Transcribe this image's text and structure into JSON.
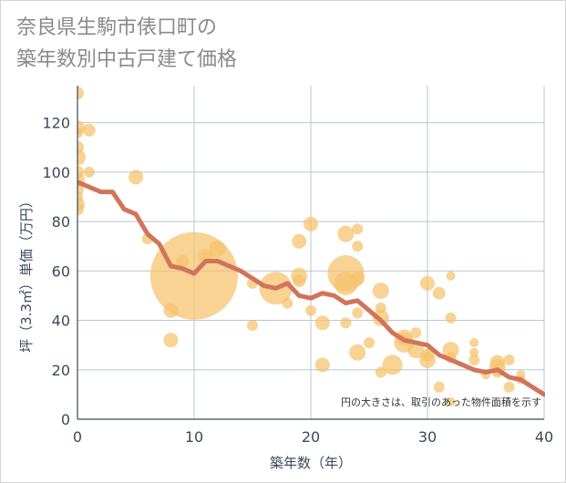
{
  "chart_data": {
    "type": "scatter",
    "title_line1": "奈良県生駒市俵口町の",
    "title_line2": "築年数別中古戸建て価格",
    "xlabel": "築年数（年）",
    "ylabel": "坪（3.3㎡）単価（万円）",
    "note": "円の大きさは、取引のあった物件面積を示す",
    "xlim": [
      0,
      40
    ],
    "ylim": [
      0,
      135
    ],
    "xticks": [
      0,
      10,
      20,
      30,
      40
    ],
    "yticks": [
      0,
      20,
      40,
      60,
      80,
      100,
      120
    ],
    "grid": true,
    "colors": {
      "bubble": "#f5c26b",
      "line": "#d2745a",
      "grid": "#b9c7d3",
      "axis": "#3b4a5a"
    },
    "bubbles": [
      {
        "x": 0,
        "y": 132,
        "s": 7
      },
      {
        "x": 0,
        "y": 118,
        "s": 8
      },
      {
        "x": 0,
        "y": 116,
        "s": 6
      },
      {
        "x": 0,
        "y": 110,
        "s": 7
      },
      {
        "x": 0,
        "y": 106,
        "s": 9
      },
      {
        "x": 0,
        "y": 100,
        "s": 7
      },
      {
        "x": 0,
        "y": 97,
        "s": 8
      },
      {
        "x": 0,
        "y": 93,
        "s": 7
      },
      {
        "x": 0,
        "y": 90,
        "s": 6
      },
      {
        "x": 0,
        "y": 87,
        "s": 8
      },
      {
        "x": 0,
        "y": 85,
        "s": 7
      },
      {
        "x": 1,
        "y": 117,
        "s": 7
      },
      {
        "x": 1,
        "y": 100,
        "s": 6
      },
      {
        "x": 5,
        "y": 98,
        "s": 8
      },
      {
        "x": 6,
        "y": 73,
        "s": 6
      },
      {
        "x": 8,
        "y": 44,
        "s": 8
      },
      {
        "x": 8,
        "y": 32,
        "s": 8
      },
      {
        "x": 9,
        "y": 64,
        "s": 7
      },
      {
        "x": 10,
        "y": 58,
        "s": 48
      },
      {
        "x": 11,
        "y": 66,
        "s": 8
      },
      {
        "x": 12,
        "y": 69,
        "s": 9
      },
      {
        "x": 15,
        "y": 55,
        "s": 6
      },
      {
        "x": 15,
        "y": 38,
        "s": 6
      },
      {
        "x": 17,
        "y": 53,
        "s": 18
      },
      {
        "x": 18,
        "y": 47,
        "s": 6
      },
      {
        "x": 19,
        "y": 72,
        "s": 8
      },
      {
        "x": 19,
        "y": 58,
        "s": 9
      },
      {
        "x": 19,
        "y": 56,
        "s": 7
      },
      {
        "x": 20,
        "y": 79,
        "s": 8
      },
      {
        "x": 20,
        "y": 44,
        "s": 6
      },
      {
        "x": 21,
        "y": 39,
        "s": 8
      },
      {
        "x": 21,
        "y": 22,
        "s": 8
      },
      {
        "x": 23,
        "y": 75,
        "s": 9
      },
      {
        "x": 23,
        "y": 59,
        "s": 20
      },
      {
        "x": 23,
        "y": 55,
        "s": 13
      },
      {
        "x": 23,
        "y": 39,
        "s": 6
      },
      {
        "x": 24,
        "y": 77,
        "s": 6
      },
      {
        "x": 24,
        "y": 70,
        "s": 6
      },
      {
        "x": 24,
        "y": 57,
        "s": 8
      },
      {
        "x": 24,
        "y": 43,
        "s": 6
      },
      {
        "x": 24,
        "y": 27,
        "s": 9
      },
      {
        "x": 25,
        "y": 31,
        "s": 6
      },
      {
        "x": 26,
        "y": 52,
        "s": 9
      },
      {
        "x": 26,
        "y": 45,
        "s": 6
      },
      {
        "x": 26,
        "y": 41,
        "s": 9
      },
      {
        "x": 26,
        "y": 19,
        "s": 6
      },
      {
        "x": 27,
        "y": 22,
        "s": 11
      },
      {
        "x": 28,
        "y": 33,
        "s": 9
      },
      {
        "x": 28,
        "y": 31,
        "s": 11
      },
      {
        "x": 29,
        "y": 35,
        "s": 6
      },
      {
        "x": 29,
        "y": 28,
        "s": 9
      },
      {
        "x": 30,
        "y": 55,
        "s": 8
      },
      {
        "x": 30,
        "y": 26,
        "s": 7
      },
      {
        "x": 30,
        "y": 24,
        "s": 9
      },
      {
        "x": 31,
        "y": 51,
        "s": 7
      },
      {
        "x": 31,
        "y": 13,
        "s": 6
      },
      {
        "x": 32,
        "y": 58,
        "s": 5
      },
      {
        "x": 32,
        "y": 41,
        "s": 6
      },
      {
        "x": 32,
        "y": 28,
        "s": 9
      },
      {
        "x": 32,
        "y": 25,
        "s": 6
      },
      {
        "x": 32,
        "y": 7,
        "s": 5
      },
      {
        "x": 34,
        "y": 31,
        "s": 5
      },
      {
        "x": 34,
        "y": 27,
        "s": 5
      },
      {
        "x": 34,
        "y": 24,
        "s": 6
      },
      {
        "x": 35,
        "y": 18,
        "s": 5
      },
      {
        "x": 36,
        "y": 23,
        "s": 8
      },
      {
        "x": 36,
        "y": 21,
        "s": 9
      },
      {
        "x": 36,
        "y": 19,
        "s": 6
      },
      {
        "x": 37,
        "y": 24,
        "s": 6
      },
      {
        "x": 37,
        "y": 13,
        "s": 6
      },
      {
        "x": 38,
        "y": 18,
        "s": 5
      },
      {
        "x": 38,
        "y": 16,
        "s": 5
      }
    ],
    "trend": {
      "x": [
        0,
        1,
        2,
        3,
        4,
        5,
        6,
        7,
        8,
        9,
        10,
        11,
        12,
        13,
        14,
        15,
        16,
        17,
        18,
        19,
        20,
        21,
        22,
        23,
        24,
        25,
        26,
        27,
        28,
        29,
        30,
        31,
        32,
        33,
        34,
        35,
        36,
        37,
        38,
        39,
        40
      ],
      "y": [
        96,
        94,
        92,
        92,
        85,
        83,
        75,
        71,
        62,
        61,
        59,
        64,
        64,
        62,
        60,
        57,
        54,
        53,
        55,
        50,
        49,
        51,
        50,
        47,
        48,
        44,
        40,
        35,
        32,
        31,
        30,
        26,
        24,
        22,
        20,
        19,
        20,
        17,
        16,
        13,
        10
      ]
    }
  }
}
